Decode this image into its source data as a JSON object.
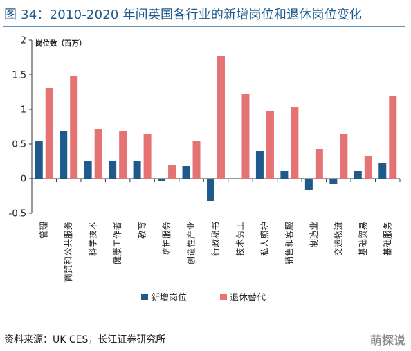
{
  "title": "图 34：2010-2020 年间英国各行业的新增岗位和退休岗位变化",
  "source": "资料来源：UK CES，长江证券研究所",
  "watermark": "萌探说",
  "chart_data": {
    "type": "bar",
    "ylabel": "岗位数（百万）",
    "ylim": [
      -0.5,
      2
    ],
    "yticks": [
      -0.5,
      0,
      0.5,
      1,
      1.5,
      2
    ],
    "ytick_labels": [
      "-0.5",
      "0",
      "0.5",
      "1",
      "1.5",
      "2"
    ],
    "categories": [
      "管理",
      "商贸和公共服务",
      "科学技术",
      "健康工作者",
      "教育",
      "防护服务",
      "创造性产业",
      "行政秘书",
      "技术劳工",
      "私人照护",
      "销售和客服",
      "制造业",
      "交运物流",
      "基础贸易",
      "基础服务"
    ],
    "series": [
      {
        "name": "新增岗位",
        "color": "#1f5a8c",
        "values": [
          0.55,
          0.69,
          0.25,
          0.26,
          0.25,
          -0.04,
          0.18,
          -0.33,
          -0.01,
          0.4,
          0.11,
          -0.16,
          -0.08,
          0.11,
          0.23
        ]
      },
      {
        "name": "退休替代",
        "color": "#e57373",
        "values": [
          1.31,
          1.48,
          0.72,
          0.69,
          0.64,
          0.2,
          0.55,
          1.77,
          1.22,
          0.97,
          1.04,
          0.43,
          0.65,
          0.33,
          1.19
        ]
      }
    ],
    "legend_position": "bottom",
    "grid": false
  }
}
